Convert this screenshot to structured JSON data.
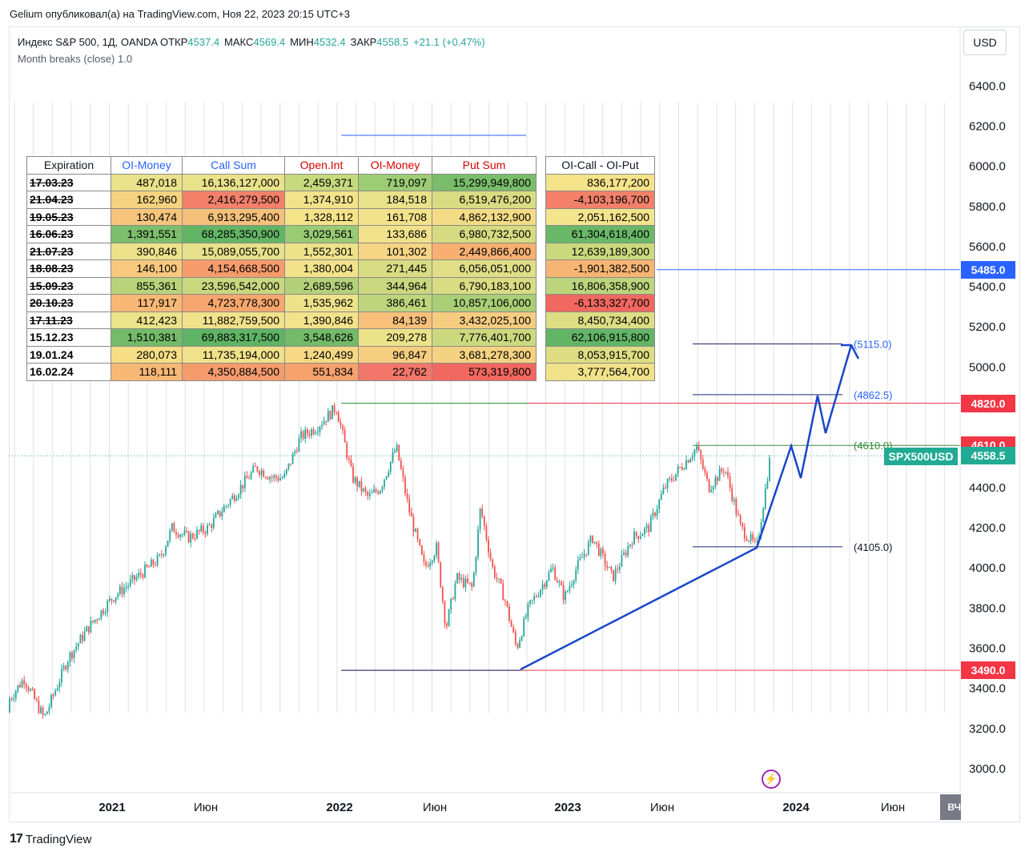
{
  "header": {
    "caption": "Gelium опубликовал(а) на TradingView.com, Ноя 22, 2023 20:15 UTC+3"
  },
  "legend": {
    "symbol": "Индекс S&P 500, 1Д, OANDA",
    "open_label": "ОТКР",
    "open": "4537.4",
    "high_label": "МАКС",
    "high": "4569.4",
    "low_label": "МИН",
    "low": "4532.4",
    "close_label": "ЗАКР",
    "close": "4558.5",
    "change": "+21.1 (+0.47%)",
    "indicator": "Month breaks (close)  1.0"
  },
  "toolbar": {
    "currency": "USD",
    "corner_label": "ВЧ"
  },
  "footer": {
    "brand": "TradingView",
    "logo_glyph": "17"
  },
  "colors": {
    "up": "#26a69a",
    "down": "#ef5350",
    "arrow": "#1a47c9",
    "level_blue": "#2962ff",
    "level_red": "#f23645",
    "level_green": "#388e3c"
  },
  "chart_data": {
    "type": "candlestick",
    "symbol": "SPX500USD",
    "currency": "USD",
    "y_ticks": [
      "3000.0",
      "3200.0",
      "3400.0",
      "3600.0",
      "3800.0",
      "4000.0",
      "4200.0",
      "4400.0",
      "4600.0",
      "4800.0",
      "5000.0",
      "5200.0",
      "5400.0",
      "5600.0",
      "5800.0",
      "6000.0",
      "6200.0",
      "6400.0"
    ],
    "ylim": [
      2950,
      6500
    ],
    "x_ticks": [
      "2021",
      "Июн",
      "2022",
      "Июн",
      "2023",
      "Июн",
      "2024",
      "Июн"
    ],
    "last_price": "4558.5",
    "price_tags": [
      {
        "value": 5485.0,
        "label": "5485.0",
        "color": "#2962ff"
      },
      {
        "value": 4820.0,
        "label": "4820.0",
        "color": "#f23645"
      },
      {
        "value": 4610.0,
        "label": "4610.0",
        "color": "#f23645"
      },
      {
        "value": 3490.0,
        "label": "3490.0",
        "color": "#f23645"
      }
    ],
    "level_labels": [
      {
        "value": 5115.0,
        "label": "(5115.0)"
      },
      {
        "value": 4862.5,
        "label": "(4862.5)"
      },
      {
        "value": 4610.0,
        "label": "(4610.0)"
      },
      {
        "value": 4105.0,
        "label": "(4105.0)"
      }
    ],
    "price_path": [
      [
        0,
        3280
      ],
      [
        30,
        3450
      ],
      [
        55,
        3250
      ],
      [
        85,
        3550
      ],
      [
        110,
        3700
      ],
      [
        140,
        3850
      ],
      [
        170,
        3950
      ],
      [
        200,
        4050
      ],
      [
        215,
        4200
      ],
      [
        235,
        4150
      ],
      [
        260,
        4200
      ],
      [
        290,
        4350
      ],
      [
        320,
        4500
      ],
      [
        340,
        4450
      ],
      [
        355,
        4450
      ],
      [
        375,
        4650
      ],
      [
        395,
        4700
      ],
      [
        420,
        4800
      ],
      [
        440,
        4450
      ],
      [
        460,
        4350
      ],
      [
        475,
        4400
      ],
      [
        495,
        4600
      ],
      [
        510,
        4300
      ],
      [
        530,
        4000
      ],
      [
        545,
        4100
      ],
      [
        557,
        3700
      ],
      [
        570,
        3950
      ],
      [
        590,
        3900
      ],
      [
        600,
        4300
      ],
      [
        615,
        4000
      ],
      [
        630,
        3850
      ],
      [
        645,
        3600
      ],
      [
        660,
        3800
      ],
      [
        690,
        4000
      ],
      [
        705,
        3850
      ],
      [
        720,
        4000
      ],
      [
        740,
        4150
      ],
      [
        765,
        3950
      ],
      [
        790,
        4150
      ],
      [
        810,
        4200
      ],
      [
        830,
        4400
      ],
      [
        850,
        4500
      ],
      [
        870,
        4600
      ],
      [
        885,
        4400
      ],
      [
        905,
        4500
      ],
      [
        925,
        4200
      ],
      [
        945,
        4100
      ],
      [
        962,
        4558
      ]
    ],
    "open_interest_table": {
      "headers": [
        "Expiration",
        "OI-Money",
        "Call Sum",
        "Open.Int",
        "OI-Money",
        "Put Sum",
        "OI-Call - OI-Put"
      ],
      "rows": [
        {
          "exp": "17.03.23",
          "past": true,
          "cells": [
            "487,018",
            "16,136,127,000",
            "2,459,371",
            "719,097",
            "15,299,949,800",
            "836,177,200"
          ],
          "colors": [
            "#e9e28a",
            "#e9e28a",
            "#c6d97c",
            "#9ccc74",
            "#79bd6a",
            "#f5e38a"
          ]
        },
        {
          "exp": "21.04.23",
          "past": true,
          "cells": [
            "162,960",
            "2,416,279,500",
            "1,374,910",
            "184,518",
            "6,519,476,200",
            "-4,103,196,700"
          ],
          "colors": [
            "#f5d27f",
            "#f2806a",
            "#f2e28a",
            "#e9e28a",
            "#d9dc82",
            "#f2806a"
          ]
        },
        {
          "exp": "19.05.23",
          "past": true,
          "cells": [
            "130,474",
            "6,913,295,400",
            "1,328,112",
            "161,708",
            "4,862,132,900",
            "2,051,162,500"
          ],
          "colors": [
            "#f7c47c",
            "#f5c07a",
            "#f5e38a",
            "#f2e28a",
            "#f4dc86",
            "#f4e48c"
          ]
        },
        {
          "exp": "16.06.23",
          "past": true,
          "cells": [
            "1,391,551",
            "68,285,350,900",
            "3,029,561",
            "133,686",
            "6,980,732,500",
            "61,304,618,400"
          ],
          "colors": [
            "#7cbe6b",
            "#63b566",
            "#99ca74",
            "#f1e18a",
            "#d6db82",
            "#69b868"
          ]
        },
        {
          "exp": "21.07.23",
          "past": true,
          "cells": [
            "390,846",
            "15,089,055,700",
            "1,552,301",
            "101,302",
            "2,449,866,400",
            "12,639,189,300"
          ],
          "colors": [
            "#ede28a",
            "#e6e18a",
            "#ede28a",
            "#f6d584",
            "#f7b072",
            "#cbd97e"
          ]
        },
        {
          "exp": "18.08.23",
          "past": true,
          "cells": [
            "146,100",
            "4,154,668,500",
            "1,380,004",
            "271,445",
            "6,056,051,000",
            "-1,901,382,500"
          ],
          "colors": [
            "#f7c87e",
            "#f69c6c",
            "#f2e28a",
            "#d8dc82",
            "#e0de86",
            "#f7b574"
          ]
        },
        {
          "exp": "15.09.23",
          "past": true,
          "cells": [
            "855,361",
            "23,596,542,000",
            "2,689,596",
            "344,964",
            "6,790,183,100",
            "16,806,358,900"
          ],
          "colors": [
            "#b8d37a",
            "#c9d77e",
            "#b4d17a",
            "#c9d77e",
            "#d9dc82",
            "#bcd47c"
          ]
        },
        {
          "exp": "20.10.23",
          "past": true,
          "cells": [
            "117,917",
            "4,723,778,300",
            "1,535,962",
            "386,461",
            "10,857,106,000",
            "-6,133,327,700"
          ],
          "colors": [
            "#f8b875",
            "#f6a66e",
            "#ede28a",
            "#bfd57c",
            "#a9cf76",
            "#f0685f"
          ]
        },
        {
          "exp": "17.11.23",
          "past": true,
          "cells": [
            "412,423",
            "11,882,759,500",
            "1,390,846",
            "84,139",
            "3,432,025,100",
            "8,450,734,400"
          ],
          "colors": [
            "#ece28a",
            "#f1e18a",
            "#f2e28a",
            "#f8c07a",
            "#f6cc80",
            "#dcdd84"
          ]
        },
        {
          "exp": "15.12.23",
          "past": false,
          "cells": [
            "1,510,381",
            "69,883,317,500",
            "3,548,626",
            "209,278",
            "7,776,401,700",
            "62,106,915,800"
          ],
          "colors": [
            "#74bb69",
            "#5fb364",
            "#73ba69",
            "#ebe28a",
            "#cbd97e",
            "#63b566"
          ]
        },
        {
          "exp": "19.01.24",
          "past": false,
          "cells": [
            "280,073",
            "11,735,194,000",
            "1,240,499",
            "96,847",
            "3,681,278,300",
            "8,053,915,700"
          ],
          "colors": [
            "#f6dd86",
            "#f1e18a",
            "#f7d985",
            "#f7ce80",
            "#f5d282",
            "#dedd84"
          ]
        },
        {
          "exp": "16.02.24",
          "past": false,
          "cells": [
            "118,111",
            "4,350,884,500",
            "551,834",
            "22,762",
            "573,319,800",
            "3,777,564,700"
          ],
          "colors": [
            "#f8b875",
            "#f69c6c",
            "#f6a26d",
            "#f2766a",
            "#f0685f",
            "#f1e28a"
          ]
        }
      ]
    }
  }
}
